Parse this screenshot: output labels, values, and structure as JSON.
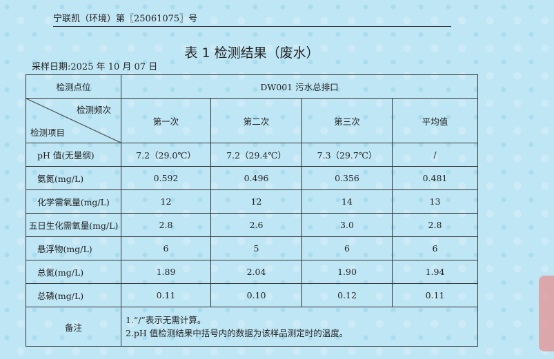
{
  "header": "宁联凯（环境）第〖25061075〗号",
  "title": "表 1 检测结果（废水）",
  "sample_date": "采样日期:2025 年 10 月 07 日",
  "table": {
    "point_label": "检测点位",
    "point_value": "DW001 污水总排口",
    "freq_label": "检测频次",
    "item_label": "检测项目",
    "columns": [
      "第一次",
      "第二次",
      "第三次",
      "平均值"
    ],
    "rows": [
      {
        "item": "pH 值(无量纲)",
        "values": [
          "7.2（29.0℃）",
          "7.2（29.4℃）",
          "7.3（29.7℃）",
          "/"
        ]
      },
      {
        "item": "氨氮(mg/L)",
        "values": [
          "0.592",
          "0.496",
          "0.356",
          "0.481"
        ]
      },
      {
        "item": "化学需氧量(mg/L)",
        "values": [
          "12",
          "12",
          "14",
          "13"
        ]
      },
      {
        "item": "五日生化需氧量(mg/L)",
        "values": [
          "2.8",
          "2.6",
          "3.0",
          "2.8"
        ]
      },
      {
        "item": "悬浮物(mg/L)",
        "values": [
          "6",
          "5",
          "6",
          "6"
        ]
      },
      {
        "item": "总氮(mg/L)",
        "values": [
          "1.89",
          "2.04",
          "1.90",
          "1.94"
        ]
      },
      {
        "item": "总磷(mg/L)",
        "values": [
          "0.11",
          "0.10",
          "0.12",
          "0.11"
        ]
      }
    ],
    "remarks_label": "备注",
    "remarks": [
      "1.“/”表示无需计算。",
      "2.pH 值检测结果中括号内的数据为该样品测定时的温度。"
    ]
  }
}
